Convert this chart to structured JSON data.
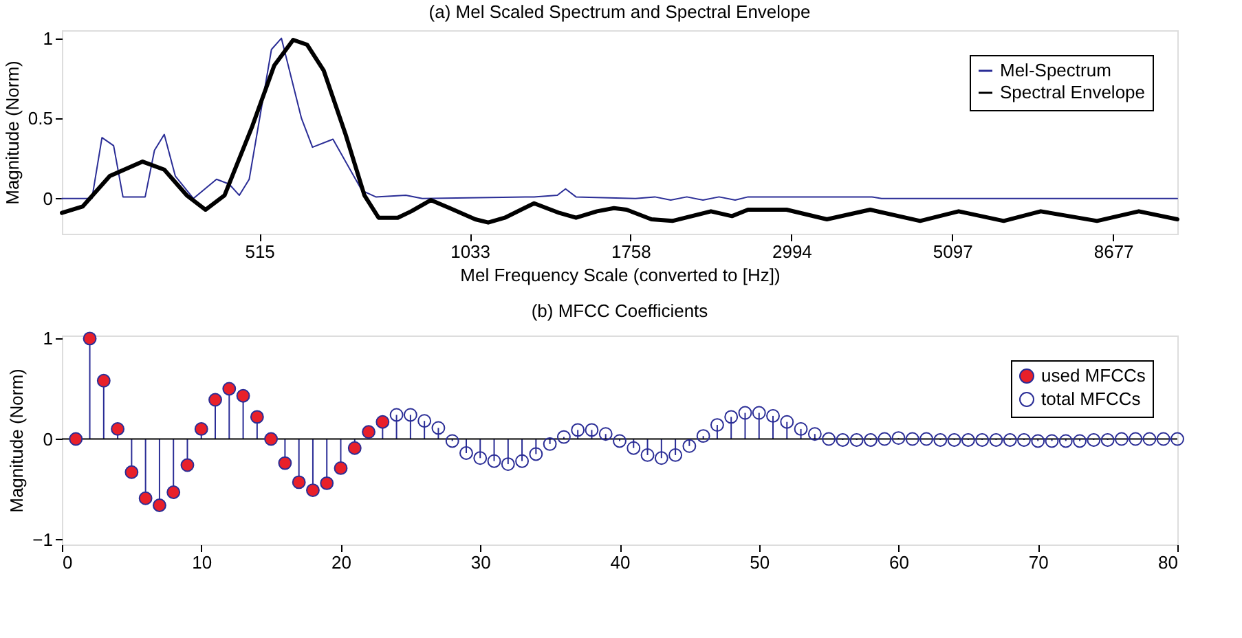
{
  "chart_data": [
    {
      "type": "line",
      "title": "(a) Mel Scaled Spectrum and Spectral Envelope",
      "xlabel": "Mel Frequency Scale (converted to [Hz])",
      "ylabel": "Magnitude (Norm)",
      "xlim": [
        268,
        10730
      ],
      "xticks": [
        515,
        1033,
        1758,
        2994,
        5097,
        8677
      ],
      "log": "x",
      "ylim": [
        -0.22,
        1.05
      ],
      "yticks": [
        0,
        0.5,
        1
      ],
      "grid": false,
      "legend": "top right",
      "marker": "none",
      "line_style": "solid",
      "series": [
        {
          "name": "Mel-Spectrum",
          "color": "#2a2d96",
          "x": [
            268,
            296,
            306,
            318,
            328,
            353,
            364,
            376,
            390,
            414,
            447,
            466,
            482,
            498,
            536,
            554,
            592,
            614,
            657,
            723,
            757,
            836,
            883,
            1278,
            1380,
            1418,
            1468,
            1787,
            1905,
            2008,
            2118,
            2234,
            2356,
            2485,
            2593,
            3906,
            4033,
            10730
          ],
          "values": [
            0,
            0,
            0.38,
            0.33,
            0.01,
            0.01,
            0.3,
            0.4,
            0.14,
            0,
            0.12,
            0.09,
            0.02,
            0.12,
            0.93,
            1.0,
            0.5,
            0.32,
            0.37,
            0.05,
            0.01,
            0.02,
            0,
            0.01,
            0.02,
            0.06,
            0.01,
            0,
            0.01,
            -0.01,
            0.01,
            -0.01,
            0.01,
            -0.01,
            0.01,
            0.01,
            0,
            0
          ]
        },
        {
          "name": "Spectral Envelope",
          "color": "#000000",
          "x": [
            268,
            287,
            314,
            350,
            376,
            405,
            431,
            459,
            503,
            541,
            576,
            603,
            637,
            685,
            729,
            764,
            814,
            851,
            908,
            967,
            1052,
            1098,
            1160,
            1278,
            1389,
            1468,
            1573,
            1664,
            1735,
            1884,
            2019,
            2294,
            2459,
            2593,
            2946,
            3366,
            3885,
            4582,
            5205,
            6041,
            6829,
            8226,
            9445,
            10730
          ],
          "values": [
            -0.09,
            -0.05,
            0.14,
            0.23,
            0.18,
            0.02,
            -0.07,
            0.02,
            0.45,
            0.83,
            0.99,
            0.96,
            0.8,
            0.4,
            0.02,
            -0.12,
            -0.12,
            -0.08,
            -0.01,
            -0.06,
            -0.13,
            -0.15,
            -0.12,
            -0.03,
            -0.09,
            -0.12,
            -0.08,
            -0.06,
            -0.07,
            -0.13,
            -0.14,
            -0.08,
            -0.11,
            -0.07,
            -0.07,
            -0.13,
            -0.07,
            -0.14,
            -0.08,
            -0.14,
            -0.08,
            -0.14,
            -0.08,
            -0.13
          ]
        }
      ]
    },
    {
      "type": "lollipop",
      "title": "(b) MFCC Coefficients",
      "ylabel": "Magnitude (Norm)",
      "xlim": [
        0,
        80
      ],
      "xticks": [
        0,
        10,
        20,
        30,
        40,
        50,
        60,
        70,
        80
      ],
      "ylim": [
        -1.05,
        1.03
      ],
      "yticks": [
        -1,
        0,
        1
      ],
      "grid": false,
      "legend": "top right",
      "marker": "circle",
      "ref_lines": [
        {
          "axis": "y",
          "value": 0,
          "color": "#000000"
        }
      ],
      "series": [
        {
          "name": "used MFCCs",
          "color": "#e8202a",
          "x": [
            1,
            2,
            3,
            4,
            5,
            6,
            7,
            8,
            9,
            10,
            11,
            12,
            13,
            14,
            15,
            16,
            17,
            18,
            19,
            20,
            21,
            22,
            23
          ],
          "values": [
            0,
            1.0,
            0.58,
            0.1,
            -0.33,
            -0.59,
            -0.66,
            -0.53,
            -0.26,
            0.1,
            0.39,
            0.5,
            0.43,
            0.22,
            0,
            -0.24,
            -0.43,
            -0.51,
            -0.44,
            -0.29,
            -0.09,
            0.07,
            0.17
          ]
        },
        {
          "name": "total MFCCs",
          "color": "#2a2d96",
          "x": [
            24,
            25,
            26,
            27,
            28,
            29,
            30,
            31,
            32,
            33,
            34,
            35,
            36,
            37,
            38,
            39,
            40,
            41,
            42,
            43,
            44,
            45,
            46,
            47,
            48,
            49,
            50,
            51,
            52,
            53,
            54,
            55,
            56,
            57,
            58,
            59,
            60,
            61,
            62,
            63,
            64,
            65,
            66,
            67,
            68,
            69,
            70,
            71,
            72,
            73,
            74,
            75,
            76,
            77,
            78,
            79,
            80
          ],
          "values": [
            0.24,
            0.24,
            0.18,
            0.11,
            -0.02,
            -0.14,
            -0.19,
            -0.22,
            -0.25,
            -0.22,
            -0.15,
            -0.05,
            0.02,
            0.09,
            0.09,
            0.05,
            -0.02,
            -0.09,
            -0.16,
            -0.19,
            -0.16,
            -0.07,
            0.03,
            0.14,
            0.22,
            0.26,
            0.26,
            0.23,
            0.17,
            0.1,
            0.05,
            0,
            -0.01,
            -0.01,
            -0.01,
            0,
            0.01,
            0,
            0,
            -0.01,
            -0.01,
            -0.01,
            -0.01,
            -0.01,
            -0.01,
            -0.01,
            -0.02,
            -0.02,
            -0.02,
            -0.02,
            -0.01,
            -0.01,
            0,
            0,
            0,
            0,
            0
          ]
        }
      ]
    }
  ]
}
